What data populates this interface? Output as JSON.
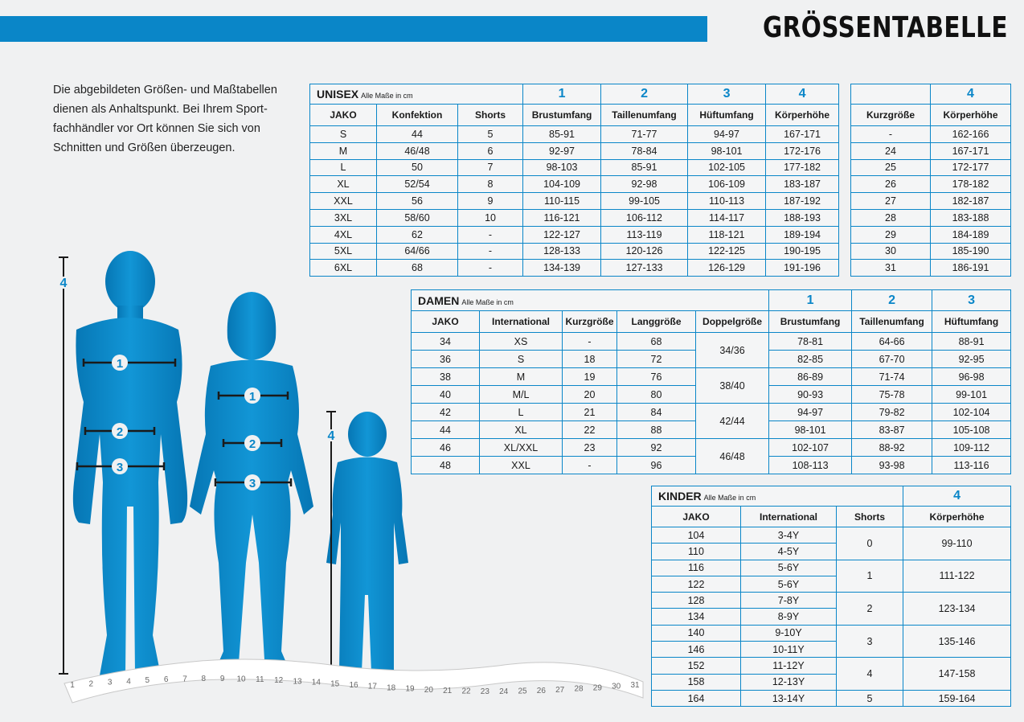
{
  "page": {
    "title": "GRÖSSENTABELLE"
  },
  "intro": [
    "Die abgebildeten Größen- und Maßtabellen",
    "dienen als Anhaltspunkt. Bei Ihrem Sport-",
    "fachhändler vor Ort können Sie sich von",
    "Schnitten und Größen überzeugen."
  ],
  "colors": {
    "accent": "#0a86c8",
    "background": "#f0f1f2"
  },
  "unisex": {
    "label": "UNISEX",
    "note": "Alle Maße in cm",
    "nums": [
      "1",
      "2",
      "3",
      "4"
    ],
    "headers": [
      "JAKO",
      "Konfektion",
      "Shorts",
      "Brustumfang",
      "Taillenumfang",
      "Hüftumfang",
      "Körperhöhe"
    ],
    "rows": [
      [
        "S",
        "44",
        "5",
        "85-91",
        "71-77",
        "94-97",
        "167-171"
      ],
      [
        "M",
        "46/48",
        "6",
        "92-97",
        "78-84",
        "98-101",
        "172-176"
      ],
      [
        "L",
        "50",
        "7",
        "98-103",
        "85-91",
        "102-105",
        "177-182"
      ],
      [
        "XL",
        "52/54",
        "8",
        "104-109",
        "92-98",
        "106-109",
        "183-187"
      ],
      [
        "XXL",
        "56",
        "9",
        "110-115",
        "99-105",
        "110-113",
        "187-192"
      ],
      [
        "3XL",
        "58/60",
        "10",
        "116-121",
        "106-112",
        "114-117",
        "188-193"
      ],
      [
        "4XL",
        "62",
        "-",
        "122-127",
        "113-119",
        "118-121",
        "189-194"
      ],
      [
        "5XL",
        "64/66",
        "-",
        "128-133",
        "120-126",
        "122-125",
        "190-195"
      ],
      [
        "6XL",
        "68",
        "-",
        "134-139",
        "127-133",
        "126-129",
        "191-196"
      ]
    ]
  },
  "kurz": {
    "num": "4",
    "headers": [
      "Kurzgröße",
      "Körperhöhe"
    ],
    "rows": [
      [
        "-",
        "162-166"
      ],
      [
        "24",
        "167-171"
      ],
      [
        "25",
        "172-177"
      ],
      [
        "26",
        "178-182"
      ],
      [
        "27",
        "182-187"
      ],
      [
        "28",
        "183-188"
      ],
      [
        "29",
        "184-189"
      ],
      [
        "30",
        "185-190"
      ],
      [
        "31",
        "186-191"
      ]
    ]
  },
  "damen": {
    "label": "DAMEN",
    "note": "Alle Maße in cm",
    "nums": [
      "1",
      "2",
      "3"
    ],
    "headers": [
      "JAKO",
      "International",
      "Kurzgröße",
      "Langgröße",
      "Doppelgröße",
      "Brustumfang",
      "Taillenumfang",
      "Hüftumfang"
    ],
    "rows": [
      [
        "34",
        "XS",
        "-",
        "68",
        "78-81",
        "64-66",
        "88-91"
      ],
      [
        "36",
        "S",
        "18",
        "72",
        "82-85",
        "67-70",
        "92-95"
      ],
      [
        "38",
        "M",
        "19",
        "76",
        "86-89",
        "71-74",
        "96-98"
      ],
      [
        "40",
        "M/L",
        "20",
        "80",
        "90-93",
        "75-78",
        "99-101"
      ],
      [
        "42",
        "L",
        "21",
        "84",
        "94-97",
        "79-82",
        "102-104"
      ],
      [
        "44",
        "XL",
        "22",
        "88",
        "98-101",
        "83-87",
        "105-108"
      ],
      [
        "46",
        "XL/XXL",
        "23",
        "92",
        "102-107",
        "88-92",
        "109-112"
      ],
      [
        "48",
        "XXL",
        "-",
        "96",
        "108-113",
        "93-98",
        "113-116"
      ]
    ],
    "doppel": [
      "34/36",
      "38/40",
      "42/44",
      "46/48"
    ]
  },
  "kinder": {
    "label": "KINDER",
    "note": "Alle Maße in cm",
    "num": "4",
    "headers": [
      "JAKO",
      "International",
      "Shorts",
      "Körperhöhe"
    ],
    "rows": [
      [
        "104",
        "3-4Y"
      ],
      [
        "110",
        "4-5Y"
      ],
      [
        "116",
        "5-6Y"
      ],
      [
        "122",
        "5-6Y"
      ],
      [
        "128",
        "7-8Y"
      ],
      [
        "134",
        "8-9Y"
      ],
      [
        "140",
        "9-10Y"
      ],
      [
        "146",
        "10-11Y"
      ],
      [
        "152",
        "11-12Y"
      ],
      [
        "158",
        "12-13Y"
      ],
      [
        "164",
        "13-14Y"
      ]
    ],
    "shorts": [
      "0",
      "1",
      "2",
      "3",
      "4",
      "5"
    ],
    "heights": [
      "99-110",
      "111-122",
      "123-134",
      "135-146",
      "147-158",
      "159-164"
    ]
  },
  "figures": {
    "man_markers": [
      "1",
      "2",
      "3",
      "4"
    ],
    "woman_markers": [
      "1",
      "2",
      "3"
    ],
    "child_marker": "4",
    "tape_numbers": [
      "1",
      "2",
      "3",
      "4",
      "5",
      "6",
      "7",
      "8",
      "9",
      "10",
      "11",
      "12",
      "13",
      "14",
      "15",
      "16",
      "17",
      "18",
      "19",
      "20",
      "21",
      "22",
      "23",
      "24",
      "25",
      "26",
      "27",
      "28",
      "29",
      "30",
      "31"
    ]
  }
}
